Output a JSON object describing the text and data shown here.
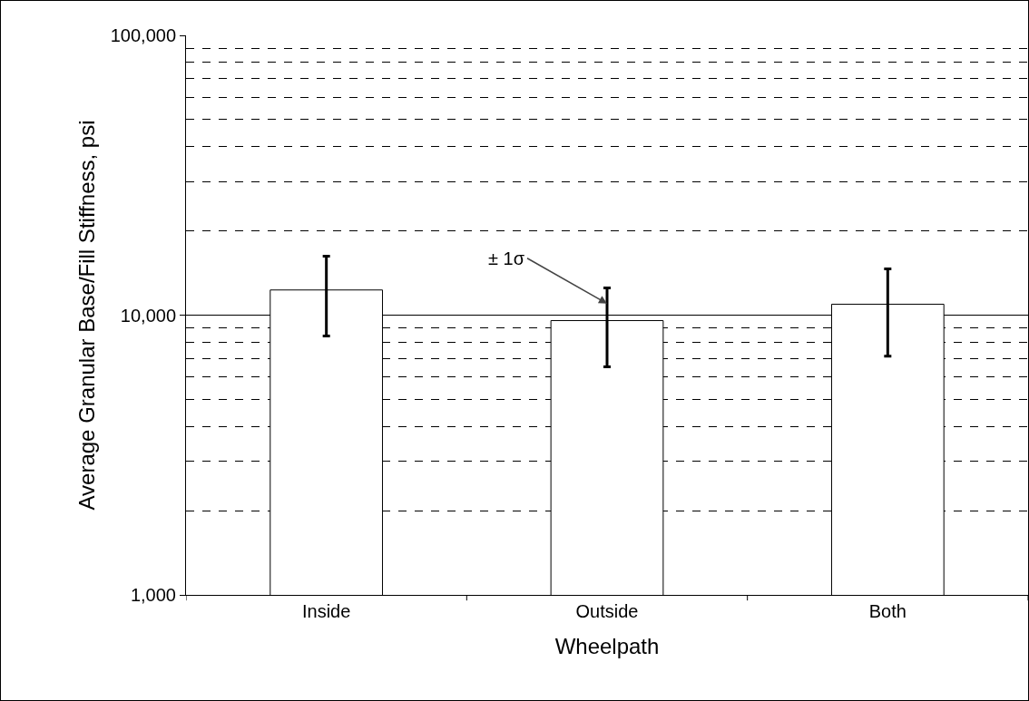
{
  "chart_data": {
    "type": "bar",
    "xlabel": "Wheelpath",
    "ylabel": "Average Granular Base/Fill Stiffness, psi",
    "categories": [
      "Inside",
      "Outside",
      "Both"
    ],
    "values": [
      12300,
      9560,
      10940
    ],
    "errors": [
      [
        8420,
        16240
      ],
      [
        6530,
        12510
      ],
      [
        7140,
        14630
      ]
    ],
    "color": "#ffffff",
    "log": true,
    "grid": "y",
    "ylim": [
      1000,
      100000
    ],
    "yticks": [
      {
        "value": 1000,
        "label": "1,000"
      },
      {
        "value": 10000,
        "label": "10,000"
      },
      {
        "value": 100000,
        "label": "100,000"
      }
    ],
    "annotations": [
      {
        "text": "± 1σ",
        "x": "Outside",
        "y": 11000
      }
    ]
  }
}
